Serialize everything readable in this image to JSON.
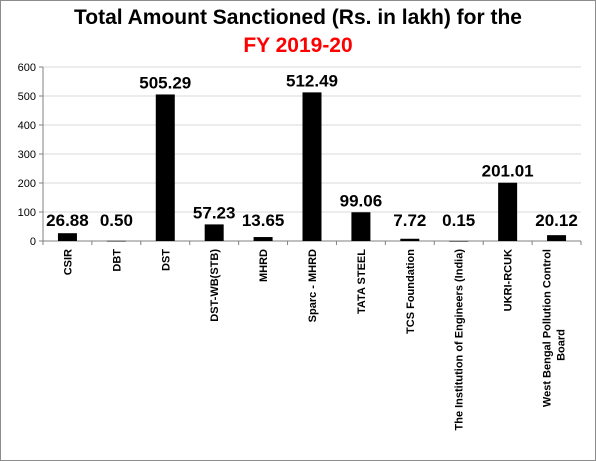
{
  "chart_data": {
    "type": "bar",
    "title": "Total Amount Sanctioned (Rs. in lakh) for the",
    "subtitle": "FY 2019-20",
    "categories": [
      "CSIR",
      "DBT",
      "DST",
      "DST-WB(STB)",
      "MHRD",
      "Sparc - MHRD",
      "TATA STEEL",
      "TCS Foundation",
      "The Institution of Engineers (India)",
      "UKRI-RCUK",
      "West Bengal Pollution Control Board"
    ],
    "values": [
      26.88,
      0.5,
      505.29,
      57.23,
      13.65,
      512.49,
      99.06,
      7.72,
      0.15,
      201.01,
      20.12
    ],
    "data_labels": [
      "26.88",
      "0.50",
      "505.29",
      "57.23",
      "13.65",
      "512.49",
      "99.06",
      "7.72",
      "0.15",
      "201.01",
      "20.12"
    ],
    "ylim": [
      0,
      600
    ],
    "yticks": [
      0,
      100,
      200,
      300,
      400,
      500,
      600
    ],
    "xlabel": "",
    "ylabel": "",
    "grid": true,
    "legend": "none"
  },
  "colors": {
    "bar": "#000000",
    "subtitle": "#ff0000",
    "grid": "#d9d9d9",
    "axis": "#808080"
  }
}
